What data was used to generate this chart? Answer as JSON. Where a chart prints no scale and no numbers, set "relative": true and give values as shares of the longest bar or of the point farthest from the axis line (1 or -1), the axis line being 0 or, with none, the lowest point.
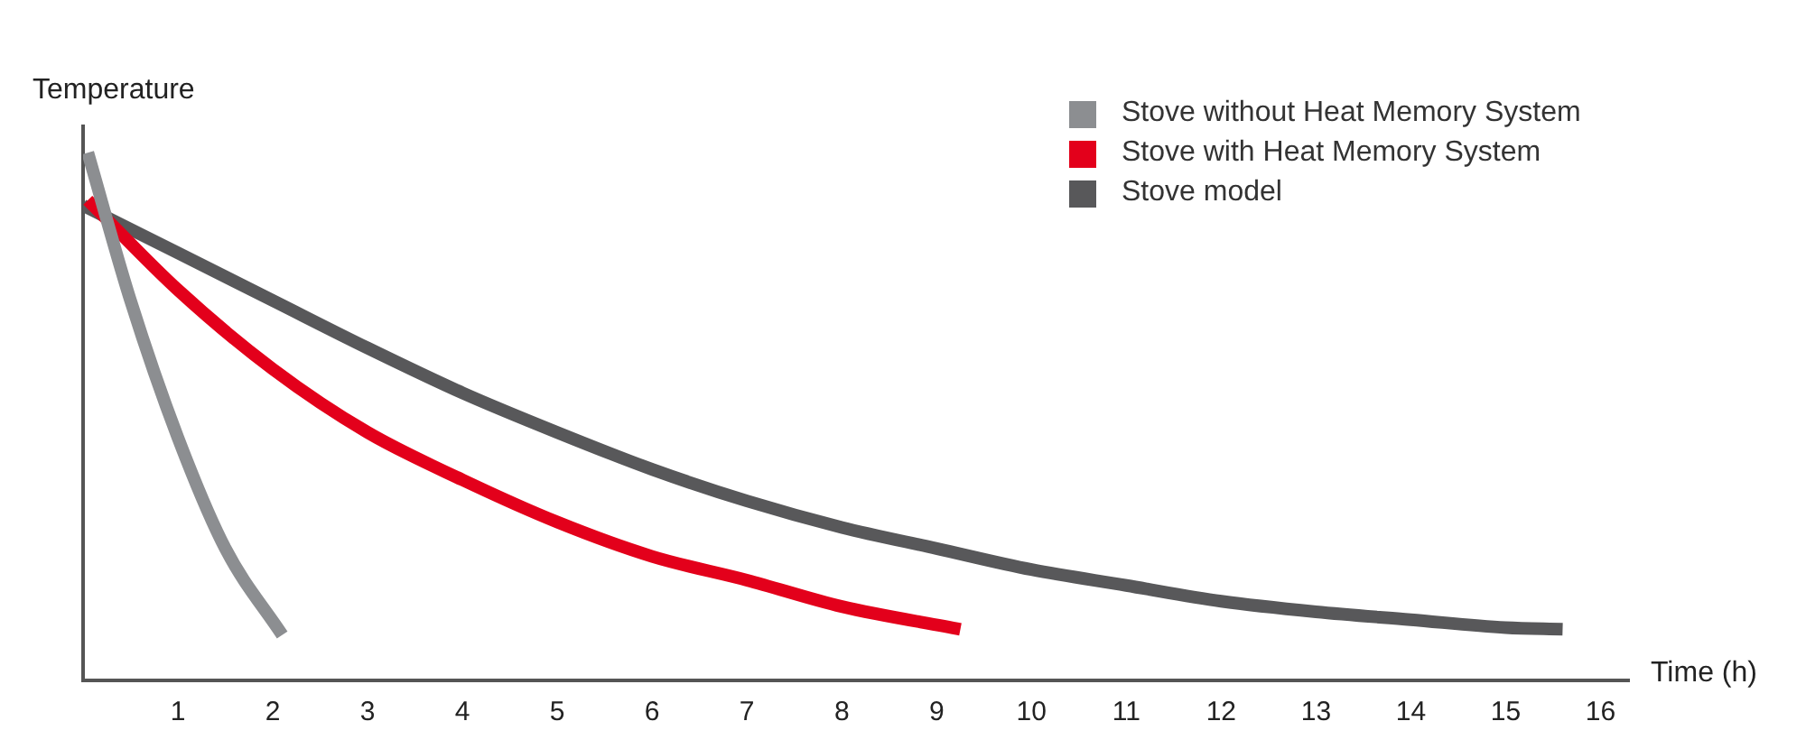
{
  "chart_data": {
    "type": "line",
    "relative": true,
    "ylabel": "Temperature",
    "xlabel": "Time (h)",
    "xlim": [
      0,
      16.3
    ],
    "xticks": [
      1,
      2,
      3,
      4,
      5,
      6,
      7,
      8,
      9,
      10,
      11,
      12,
      13,
      14,
      15,
      16
    ],
    "legend": "top right",
    "grid": false,
    "marker": "none",
    "line_style": "solid",
    "series": [
      {
        "name": "Stove without Heat Memory System",
        "color": "#8c8e91",
        "x": [
          0.05,
          0.5,
          1,
          1.5,
          2.1
        ],
        "values": [
          1,
          0.72,
          0.46,
          0.25,
          0.086
        ]
      },
      {
        "name": "Stove with Heat Memory System",
        "color": "#e3001b",
        "x": [
          0.05,
          1,
          2,
          3,
          4,
          5,
          6,
          7,
          8,
          9.25
        ],
        "values": [
          0.91,
          0.74,
          0.59,
          0.47,
          0.38,
          0.3,
          0.235,
          0.19,
          0.14,
          0.097
        ]
      },
      {
        "name": "Stove model",
        "color": "#58585a",
        "x": [
          0,
          1,
          2,
          3,
          4,
          5,
          6,
          7,
          8,
          9,
          10,
          11,
          12,
          13,
          14,
          15,
          15.6
        ],
        "values": [
          0.9,
          0.81,
          0.72,
          0.63,
          0.545,
          0.47,
          0.4,
          0.34,
          0.29,
          0.25,
          0.21,
          0.18,
          0.15,
          0.13,
          0.115,
          0.1,
          0.097
        ]
      }
    ]
  }
}
